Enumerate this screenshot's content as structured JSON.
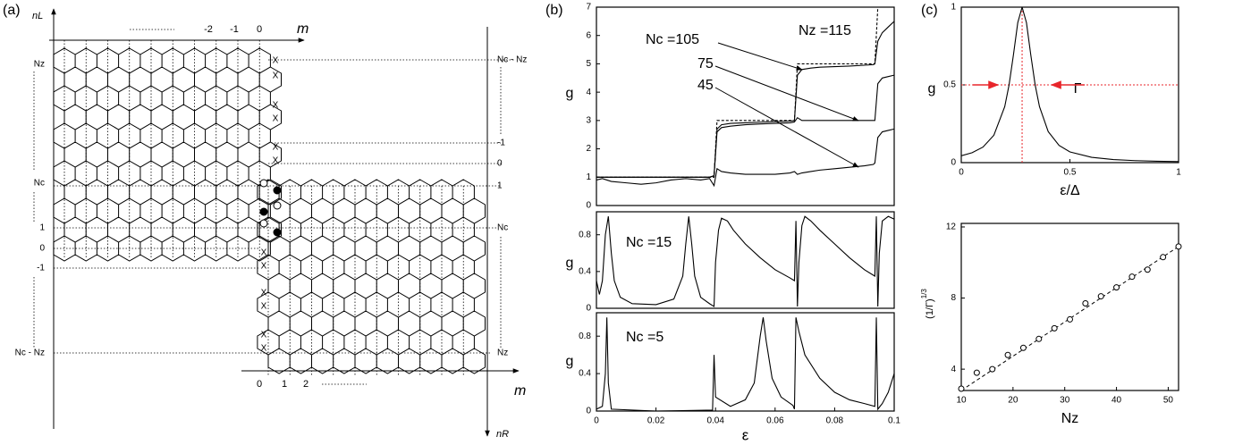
{
  "panel_labels": [
    "(a)",
    "(b)",
    "(c)"
  ],
  "diagram": {
    "axis_top_label": "m",
    "axis_left_label": "nL",
    "axis_bottom_label": "m",
    "axis_right_label": "nR",
    "top_ticks": [
      "-2",
      "-1",
      "0"
    ],
    "bottom_ticks": [
      "0",
      "1",
      "2"
    ],
    "left_labels": [
      "Nz",
      "Nc",
      "1",
      "0",
      "-1",
      "Nc - Nz"
    ],
    "right_labels": [
      "Nc - Nz",
      "-1",
      "0",
      "1",
      "Nc",
      "Nz"
    ],
    "x_marks": [
      "X",
      "X",
      "X",
      "X",
      "X",
      "X",
      "X",
      "X",
      "X",
      "X",
      "X",
      "X"
    ]
  },
  "chart_data": [
    {
      "type": "line",
      "ylabel": "g",
      "xlim": [
        0,
        0.1
      ],
      "ylim": [
        0,
        7
      ],
      "yticks": [
        0,
        1,
        2,
        3,
        4,
        5,
        6,
        7
      ],
      "annotations": [
        "Nz =115",
        "Nc =105",
        "75",
        "45"
      ],
      "x": [
        0,
        0.002,
        0.005,
        0.01,
        0.015,
        0.02,
        0.025,
        0.03,
        0.035,
        0.038,
        0.0395,
        0.0405,
        0.042,
        0.045,
        0.05,
        0.055,
        0.06,
        0.065,
        0.0665,
        0.0675,
        0.069,
        0.072,
        0.075,
        0.08,
        0.085,
        0.09,
        0.093,
        0.0935,
        0.0945,
        0.096,
        0.098,
        0.1
      ],
      "series": [
        {
          "color": "#000000",
          "dashed": true,
          "values": [
            1,
            1,
            1,
            1,
            1,
            1,
            1,
            1,
            1,
            1,
            1,
            3,
            3,
            3,
            3,
            3,
            3,
            3,
            3,
            5,
            5,
            5,
            5,
            5,
            5,
            5,
            5,
            5,
            7,
            7,
            7,
            7
          ]
        },
        {
          "color": "#000000",
          "dashed": false,
          "values": [
            1,
            1,
            1,
            1,
            1,
            1,
            1,
            1,
            1,
            1,
            1.05,
            2.7,
            2.85,
            2.9,
            2.92,
            2.94,
            2.96,
            2.98,
            3.0,
            4.6,
            4.8,
            4.85,
            4.88,
            4.9,
            4.92,
            4.95,
            4.97,
            5.0,
            5.8,
            6.1,
            6.3,
            6.5
          ]
        },
        {
          "color": "#000000",
          "dashed": false,
          "values": [
            1,
            1,
            1,
            1,
            1,
            1,
            1,
            1,
            1,
            1,
            1.05,
            2.6,
            2.75,
            2.8,
            2.85,
            2.88,
            2.9,
            2.92,
            2.95,
            3.1,
            3.0,
            3.0,
            3.0,
            3.0,
            3.0,
            3.0,
            3.0,
            3.0,
            4.3,
            4.5,
            4.55,
            4.6
          ]
        },
        {
          "color": "#000000",
          "dashed": false,
          "values": [
            0.9,
            0.95,
            0.85,
            0.8,
            0.75,
            0.8,
            0.9,
            0.95,
            0.9,
            0.95,
            0.7,
            1.3,
            1.2,
            1.15,
            1.1,
            1.1,
            1.1,
            1.15,
            1.2,
            1.1,
            1.15,
            1.2,
            1.25,
            1.3,
            1.35,
            1.4,
            1.45,
            1.5,
            2.4,
            2.6,
            2.65,
            2.7
          ]
        }
      ]
    },
    {
      "type": "line",
      "ylabel": "g",
      "xlim": [
        0,
        0.1
      ],
      "ylim": [
        0,
        1.05
      ],
      "yticks": [
        0,
        0.4,
        0.8
      ],
      "annotations": [
        "Nc =15"
      ],
      "x": [
        0,
        0.001,
        0.002,
        0.003,
        0.004,
        0.005,
        0.006,
        0.008,
        0.012,
        0.02,
        0.026,
        0.029,
        0.03,
        0.031,
        0.032,
        0.033,
        0.035,
        0.038,
        0.0395,
        0.04,
        0.041,
        0.042,
        0.044,
        0.046,
        0.05,
        0.055,
        0.06,
        0.065,
        0.0665,
        0.067,
        0.0675,
        0.068,
        0.069,
        0.07,
        0.072,
        0.075,
        0.08,
        0.085,
        0.09,
        0.093,
        0.0935,
        0.094,
        0.0945,
        0.095,
        0.096,
        0.098,
        0.1
      ],
      "series": [
        {
          "color": "#000000",
          "dashed": false,
          "values": [
            0.3,
            0.15,
            0.3,
            0.8,
            1.0,
            0.6,
            0.3,
            0.12,
            0.05,
            0.04,
            0.1,
            0.35,
            0.7,
            1.0,
            0.7,
            0.35,
            0.12,
            0.05,
            0.02,
            0.5,
            0.85,
            0.98,
            0.95,
            0.85,
            0.7,
            0.55,
            0.42,
            0.33,
            0.3,
            0.95,
            0.02,
            0.5,
            0.9,
            1.0,
            0.95,
            0.85,
            0.7,
            0.55,
            0.42,
            0.36,
            0.35,
            1.0,
            0.02,
            0.6,
            0.95,
            1.0,
            0.97
          ]
        }
      ]
    },
    {
      "type": "line",
      "ylabel": "g",
      "xlabel": "ε",
      "xlim": [
        0,
        0.1
      ],
      "ylim": [
        0,
        1.05
      ],
      "yticks": [
        0,
        0.4,
        0.8
      ],
      "xticks": [
        0,
        0.02,
        0.04,
        0.06,
        0.08,
        0.1
      ],
      "annotations": [
        "Nc =5"
      ],
      "x": [
        0,
        0.002,
        0.003,
        0.0035,
        0.004,
        0.005,
        0.02,
        0.039,
        0.0395,
        0.04,
        0.045,
        0.05,
        0.053,
        0.055,
        0.056,
        0.057,
        0.059,
        0.062,
        0.066,
        0.0665,
        0.067,
        0.068,
        0.07,
        0.075,
        0.08,
        0.085,
        0.09,
        0.0935,
        0.094,
        0.0945,
        0.096,
        0.098,
        0.1
      ],
      "series": [
        {
          "color": "#000000",
          "dashed": false,
          "values": [
            0.02,
            0.05,
            0.4,
            1.0,
            0.3,
            0.02,
            0.0,
            0.01,
            0.6,
            0.15,
            0.05,
            0.12,
            0.3,
            0.8,
            1.0,
            0.75,
            0.35,
            0.15,
            0.06,
            0.02,
            1.0,
            0.85,
            0.6,
            0.35,
            0.2,
            0.12,
            0.08,
            0.05,
            1.0,
            0.02,
            0.08,
            0.2,
            0.4
          ]
        }
      ]
    },
    {
      "type": "line",
      "ylabel": "g",
      "xlabel": "ε/Δ",
      "xlim": [
        0,
        1
      ],
      "ylim": [
        0,
        1
      ],
      "xticks": [
        0,
        0.5,
        1
      ],
      "yticks": [
        0,
        0.5,
        1
      ],
      "annotations": [
        "Γ"
      ],
      "ref_lines": {
        "x": 0.28,
        "y": 0.5,
        "color": "#e8262b"
      },
      "x": [
        0,
        0.05,
        0.1,
        0.15,
        0.2,
        0.22,
        0.24,
        0.26,
        0.28,
        0.3,
        0.32,
        0.34,
        0.36,
        0.4,
        0.45,
        0.5,
        0.6,
        0.7,
        0.8,
        0.9,
        1
      ],
      "series": [
        {
          "color": "#000000",
          "dashed": false,
          "values": [
            0.044,
            0.064,
            0.1,
            0.176,
            0.36,
            0.5,
            0.692,
            0.9,
            1,
            0.9,
            0.692,
            0.5,
            0.36,
            0.2,
            0.111,
            0.069,
            0.034,
            0.02,
            0.013,
            0.009,
            0.007
          ]
        }
      ]
    },
    {
      "type": "scatter",
      "ylabel": "(1/Γ)",
      "ylabel_exponent": "1/3",
      "xlabel": "Nz",
      "xlim": [
        10,
        52
      ],
      "ylim": [
        2.8,
        12.2
      ],
      "xticks": [
        10,
        20,
        30,
        40,
        50
      ],
      "yticks": [
        4,
        8,
        12
      ],
      "x": [
        10,
        13,
        16,
        19,
        22,
        25,
        28,
        31,
        34,
        37,
        40,
        43,
        46,
        49,
        52
      ],
      "values": [
        2.9,
        3.8,
        4.0,
        4.8,
        5.2,
        5.7,
        6.3,
        6.8,
        7.7,
        8.1,
        8.6,
        9.2,
        9.6,
        10.3,
        10.9
      ],
      "color": "#000000",
      "fit": {
        "x": [
          10,
          52
        ],
        "y": [
          2.8,
          10.9
        ]
      }
    }
  ]
}
